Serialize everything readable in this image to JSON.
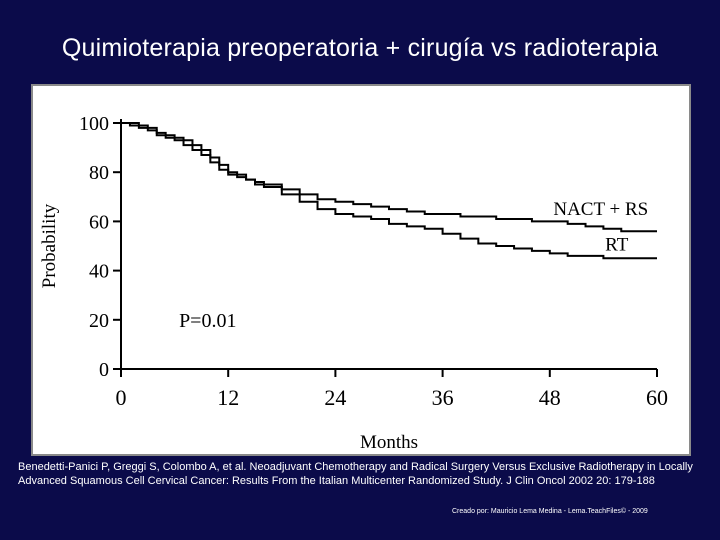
{
  "slide": {
    "title": "Quimioterapia preoperatoria + cirugía vs radioterapia",
    "citation": "Benedetti-Panici P, Greggi S, Colombo A, et al. Neoadjuvant Chemotherapy and Radical Surgery Versus Exclusive Radiotherapy in Locally Advanced Squamous Cell Cervical Cancer: Results From the Italian Multicenter Randomized Study. J Clin Oncol 2002 20: 179-188",
    "credit": "Creado por: Mauricio Lema Medina - Lema.TeachFiles© - 2009"
  },
  "chart_data": {
    "type": "line",
    "title": "",
    "xlabel": "Months",
    "ylabel": "Probability",
    "xlim": [
      0,
      60
    ],
    "ylim": [
      0,
      100
    ],
    "xticks": [
      0,
      12,
      24,
      36,
      48,
      60
    ],
    "yticks": [
      0,
      20,
      40,
      60,
      80,
      100
    ],
    "grid": false,
    "annotation": "P=0.01",
    "step": true,
    "series": [
      {
        "name": "NACT + RS",
        "x": [
          0,
          1,
          2,
          3,
          4,
          5,
          6,
          7,
          8,
          9,
          10,
          11,
          12,
          13,
          14,
          15,
          16,
          18,
          20,
          22,
          24,
          26,
          28,
          30,
          32,
          34,
          36,
          38,
          40,
          42,
          44,
          46,
          48,
          50,
          52,
          54,
          56,
          58,
          60
        ],
        "y": [
          100,
          99,
          98,
          97,
          95,
          94,
          93,
          91,
          89,
          87,
          84,
          81,
          79,
          78,
          77,
          76,
          75,
          73,
          71,
          69,
          68,
          67,
          66,
          65,
          64,
          63,
          63,
          62,
          62,
          61,
          61,
          60,
          60,
          59,
          58,
          57,
          56,
          56,
          56
        ]
      },
      {
        "name": "RT",
        "x": [
          0,
          1,
          2,
          3,
          4,
          5,
          6,
          7,
          8,
          9,
          10,
          11,
          12,
          13,
          14,
          15,
          16,
          18,
          20,
          22,
          24,
          26,
          28,
          30,
          32,
          34,
          36,
          38,
          40,
          42,
          44,
          46,
          48,
          50,
          52,
          54,
          56,
          58,
          60
        ],
        "y": [
          100,
          100,
          99,
          98,
          96,
          95,
          94,
          93,
          91,
          89,
          86,
          83,
          80,
          79,
          77,
          75,
          74,
          71,
          68,
          65,
          63,
          62,
          61,
          59,
          58,
          57,
          55,
          53,
          51,
          50,
          49,
          48,
          47,
          46,
          46,
          45,
          45,
          45,
          45
        ]
      }
    ]
  }
}
